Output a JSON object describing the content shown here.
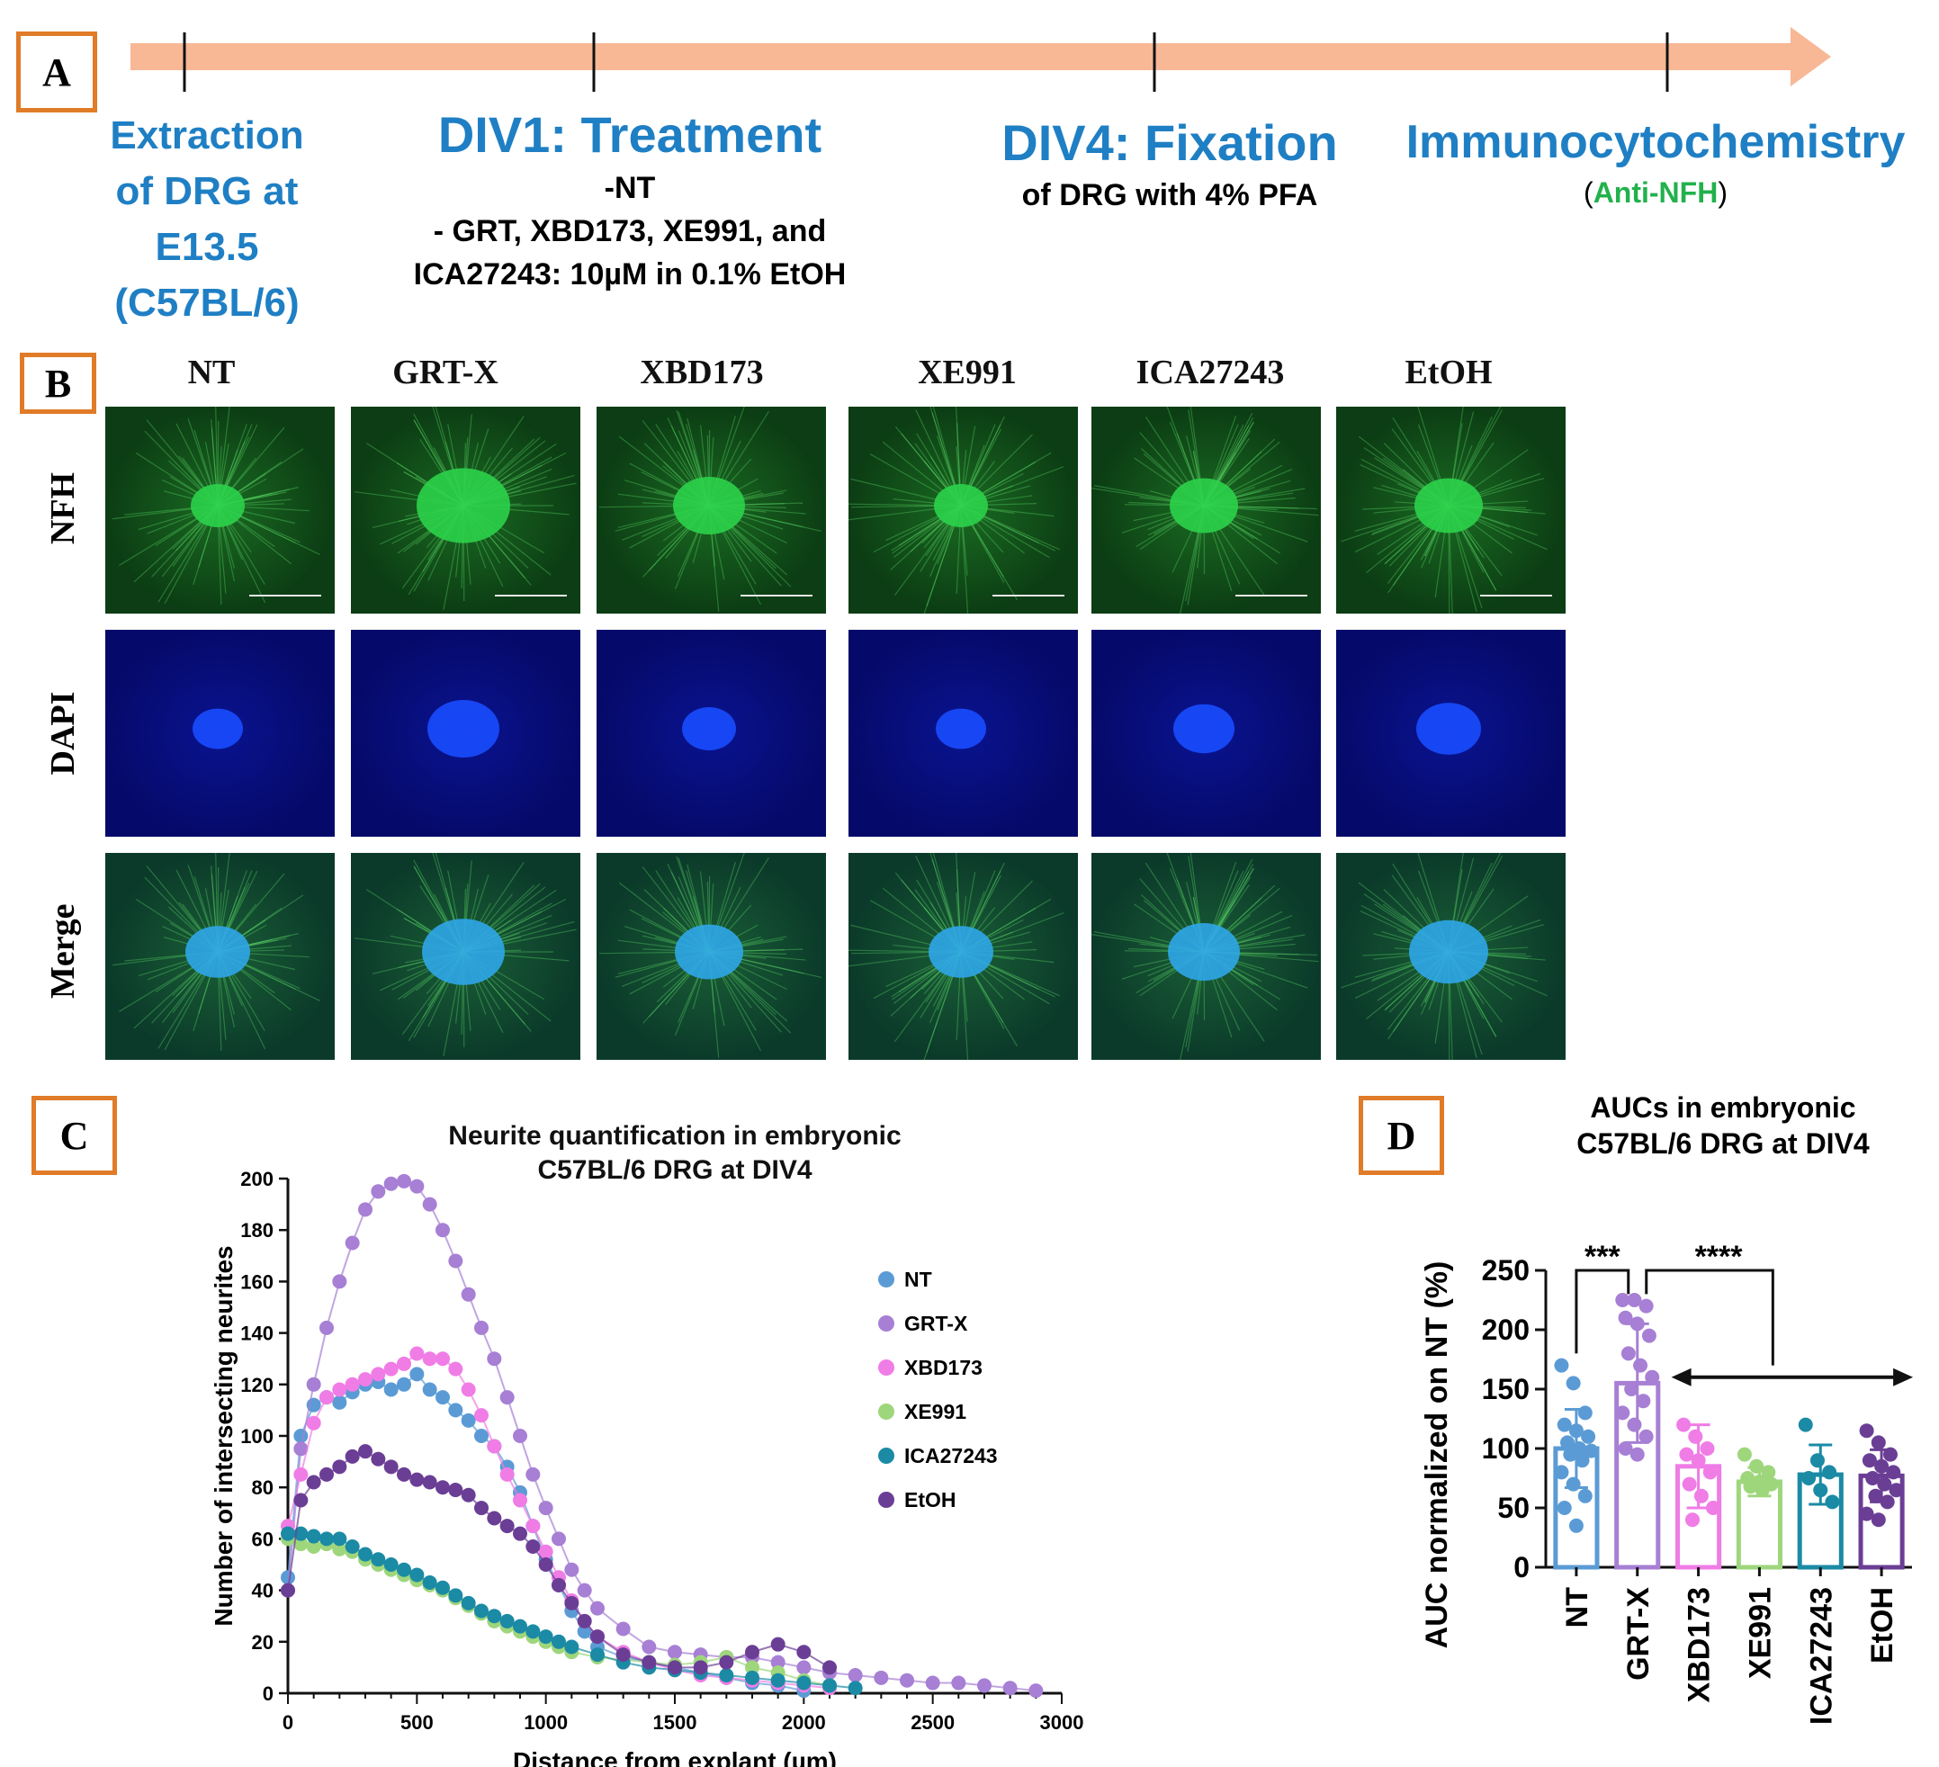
{
  "panel_labels": {
    "a": "A",
    "b": "B",
    "c": "C",
    "d": "D"
  },
  "timeline": {
    "step1": {
      "lines": [
        "Extraction",
        "of DRG at",
        "E13.5",
        "(C57BL/6)"
      ]
    },
    "step2": {
      "title": "DIV1: Treatment",
      "lines": [
        "-NT",
        "- GRT, XBD173, XE991, and",
        "ICA27243: 10µM in 0.1% EtOH"
      ]
    },
    "step3": {
      "title": "DIV4: Fixation",
      "line": "of DRG with 4% PFA"
    },
    "step4": {
      "title": "Immunocytochemistry",
      "paren_open": "(",
      "antibody": "Anti-NFH",
      "paren_close": ")"
    }
  },
  "micrographs": {
    "columns": [
      "NT",
      "GRT-X",
      "XBD173",
      "XE991",
      "ICA27243",
      "EtOH"
    ],
    "rows": [
      "NFH",
      "DAPI",
      "Merge"
    ]
  },
  "colors": {
    "NT": "#5b9bd5",
    "GRT-X": "#a77fd4",
    "XBD173": "#f07ce6",
    "XE991": "#9ed67c",
    "ICA27243": "#1b8aa5",
    "EtOH": "#6b3e95",
    "accent": "#e07b28",
    "title_blue": "#1f7fc4",
    "nfh_green": "#22b14c"
  },
  "chart_data": [
    {
      "type": "scatter",
      "title": "Neurite quantification in embryonic C57BL/6 DRG at DIV4",
      "title_lines": [
        "Neurite quantification in embryonic",
        "C57BL/6 DRG at DIV4"
      ],
      "xlabel": "Distance from explant (µm)",
      "ylabel": "Number of intersecting neurites",
      "xlim": [
        0,
        3000
      ],
      "ylim": [
        0,
        200
      ],
      "xticks": [
        0,
        500,
        1000,
        1500,
        2000,
        2500,
        3000
      ],
      "yticks": [
        0,
        20,
        40,
        60,
        80,
        100,
        120,
        140,
        160,
        180,
        200
      ],
      "legend": "right",
      "series": [
        {
          "name": "NT",
          "x": [
            0,
            50,
            100,
            150,
            200,
            250,
            300,
            350,
            400,
            450,
            500,
            550,
            600,
            650,
            700,
            750,
            800,
            850,
            900,
            950,
            1000,
            1050,
            1100,
            1150,
            1200,
            1300,
            1400,
            1500,
            1600,
            1700,
            1800,
            1900,
            2000
          ],
          "values": [
            45,
            100,
            112,
            115,
            113,
            117,
            120,
            121,
            118,
            120,
            124,
            118,
            115,
            110,
            106,
            100,
            96,
            88,
            78,
            65,
            52,
            42,
            32,
            24,
            18,
            14,
            12,
            10,
            8,
            6,
            4,
            3,
            1
          ]
        },
        {
          "name": "GRT-X",
          "x": [
            0,
            50,
            100,
            150,
            200,
            250,
            300,
            350,
            400,
            450,
            500,
            550,
            600,
            650,
            700,
            750,
            800,
            850,
            900,
            950,
            1000,
            1050,
            1100,
            1150,
            1200,
            1300,
            1400,
            1500,
            1600,
            1700,
            1800,
            1900,
            2000,
            2100,
            2200,
            2300,
            2400,
            2500,
            2600,
            2700,
            2800,
            2900
          ],
          "values": [
            40,
            95,
            120,
            142,
            160,
            175,
            188,
            195,
            198,
            199,
            197,
            190,
            180,
            168,
            155,
            142,
            130,
            115,
            100,
            85,
            72,
            60,
            48,
            40,
            33,
            25,
            18,
            16,
            15,
            14,
            14,
            12,
            10,
            8,
            7,
            6,
            5,
            4,
            4,
            3,
            2,
            1
          ]
        },
        {
          "name": "XBD173",
          "x": [
            0,
            50,
            100,
            150,
            200,
            250,
            300,
            350,
            400,
            450,
            500,
            550,
            600,
            650,
            700,
            750,
            800,
            850,
            900,
            950,
            1000,
            1050,
            1100,
            1150,
            1200,
            1300,
            1400,
            1500,
            1600,
            1700,
            1800,
            1900,
            2000,
            2100
          ],
          "values": [
            65,
            85,
            105,
            115,
            118,
            120,
            122,
            124,
            126,
            128,
            132,
            130,
            130,
            126,
            118,
            108,
            96,
            85,
            75,
            65,
            55,
            45,
            36,
            28,
            22,
            16,
            12,
            9,
            7,
            6,
            5,
            4,
            3,
            2
          ]
        },
        {
          "name": "XE991",
          "x": [
            0,
            50,
            100,
            150,
            200,
            250,
            300,
            350,
            400,
            450,
            500,
            550,
            600,
            650,
            700,
            750,
            800,
            850,
            900,
            950,
            1000,
            1050,
            1100,
            1200,
            1300,
            1400,
            1500,
            1600,
            1700,
            1800,
            1900,
            2000,
            2100
          ],
          "values": [
            60,
            58,
            57,
            58,
            56,
            55,
            52,
            50,
            48,
            46,
            44,
            42,
            40,
            37,
            34,
            31,
            28,
            26,
            24,
            22,
            20,
            18,
            16,
            14,
            13,
            12,
            11,
            12,
            14,
            10,
            8,
            5,
            3
          ]
        },
        {
          "name": "ICA27243",
          "x": [
            0,
            50,
            100,
            150,
            200,
            250,
            300,
            350,
            400,
            450,
            500,
            550,
            600,
            650,
            700,
            750,
            800,
            850,
            900,
            950,
            1000,
            1050,
            1100,
            1200,
            1300,
            1400,
            1500,
            1600,
            1700,
            1800,
            1900,
            2000,
            2100,
            2200
          ],
          "values": [
            62,
            62,
            61,
            60,
            60,
            57,
            54,
            52,
            50,
            48,
            46,
            43,
            41,
            38,
            35,
            32,
            30,
            28,
            26,
            24,
            22,
            20,
            18,
            15,
            12,
            10,
            9,
            8,
            7,
            6,
            5,
            4,
            3,
            2
          ]
        },
        {
          "name": "EtOH",
          "x": [
            0,
            50,
            100,
            150,
            200,
            250,
            300,
            350,
            400,
            450,
            500,
            550,
            600,
            650,
            700,
            750,
            800,
            850,
            900,
            950,
            1000,
            1050,
            1100,
            1150,
            1200,
            1300,
            1400,
            1500,
            1600,
            1700,
            1800,
            1900,
            2000,
            2100
          ],
          "values": [
            40,
            75,
            82,
            85,
            88,
            92,
            94,
            91,
            88,
            85,
            83,
            82,
            80,
            79,
            77,
            72,
            68,
            65,
            62,
            57,
            50,
            42,
            35,
            28,
            22,
            15,
            12,
            10,
            10,
            12,
            16,
            19,
            16,
            10
          ]
        }
      ]
    },
    {
      "type": "bar",
      "title": "AUCs in embryonic C57BL/6 DRG at DIV4",
      "title_lines": [
        "AUCs in embryonic",
        "C57BL/6 DRG at DIV4"
      ],
      "xlabel": "",
      "ylabel": "AUC normalized on NT (%)",
      "ylim": [
        0,
        250
      ],
      "yticks": [
        0,
        50,
        100,
        150,
        200,
        250
      ],
      "categories": [
        "NT",
        "GRT-X",
        "XBD173",
        "XE991",
        "ICA27243",
        "EtOH"
      ],
      "values": [
        100,
        155,
        85,
        72,
        78,
        77
      ],
      "errors": [
        33,
        50,
        35,
        12,
        25,
        22
      ],
      "points": [
        [
          170,
          155,
          130,
          120,
          115,
          110,
          105,
          100,
          98,
          95,
          90,
          80,
          70,
          60,
          50,
          35
        ],
        [
          225,
          225,
          220,
          210,
          205,
          195,
          180,
          170,
          160,
          150,
          140,
          130,
          120,
          110,
          100,
          95
        ],
        [
          120,
          110,
          100,
          95,
          90,
          80,
          70,
          60,
          50,
          40
        ],
        [
          95,
          85,
          80,
          75,
          72,
          70,
          68,
          65
        ],
        [
          120,
          90,
          80,
          75,
          65,
          55
        ],
        [
          115,
          105,
          95,
          90,
          85,
          80,
          75,
          70,
          65,
          60,
          55,
          45,
          40
        ]
      ],
      "significance": [
        {
          "label": "***",
          "from": "NT",
          "to": "GRT-X"
        },
        {
          "label": "****",
          "from": "GRT-X",
          "to": "XBD173, XE991, ICA27243, EtOH"
        }
      ]
    }
  ]
}
